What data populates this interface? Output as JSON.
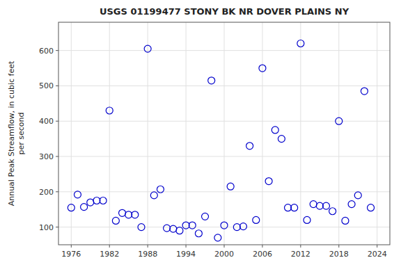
{
  "chart_data": {
    "type": "scatter",
    "title": "USGS 01199477 STONY BK NR DOVER PLAINS NY",
    "y_label": [
      "Annual Peak Streamflow, in cubic feet",
      "per second"
    ],
    "x": [
      1976,
      1977,
      1978,
      1979,
      1980,
      1981,
      1982,
      1983,
      1984,
      1985,
      1986,
      1987,
      1988,
      1989,
      1990,
      1991,
      1992,
      1993,
      1994,
      1995,
      1996,
      1997,
      1998,
      1999,
      2000,
      2001,
      2002,
      2003,
      2004,
      2005,
      2006,
      2007,
      2008,
      2009,
      2010,
      2011,
      2012,
      2013,
      2014,
      2015,
      2016,
      2017,
      2018,
      2019,
      2020,
      2021,
      2022,
      2023
    ],
    "values": [
      155,
      192,
      157,
      170,
      175,
      175,
      430,
      118,
      140,
      135,
      135,
      100,
      605,
      190,
      207,
      97,
      95,
      90,
      105,
      105,
      82,
      130,
      515,
      70,
      105,
      215,
      100,
      102,
      330,
      120,
      550,
      230,
      375,
      350,
      155,
      155,
      620,
      120,
      165,
      160,
      160,
      145,
      400,
      118,
      165,
      190,
      485,
      155
    ],
    "color": "#0000cc",
    "marker": "circle",
    "xlim": [
      1974,
      2026
    ],
    "ylim": [
      50,
      680
    ],
    "xticks": [
      1976,
      1982,
      1988,
      1994,
      2000,
      2006,
      2012,
      2018,
      2024
    ],
    "yticks": [
      100,
      200,
      300,
      400,
      500,
      600
    ],
    "grid": true
  }
}
